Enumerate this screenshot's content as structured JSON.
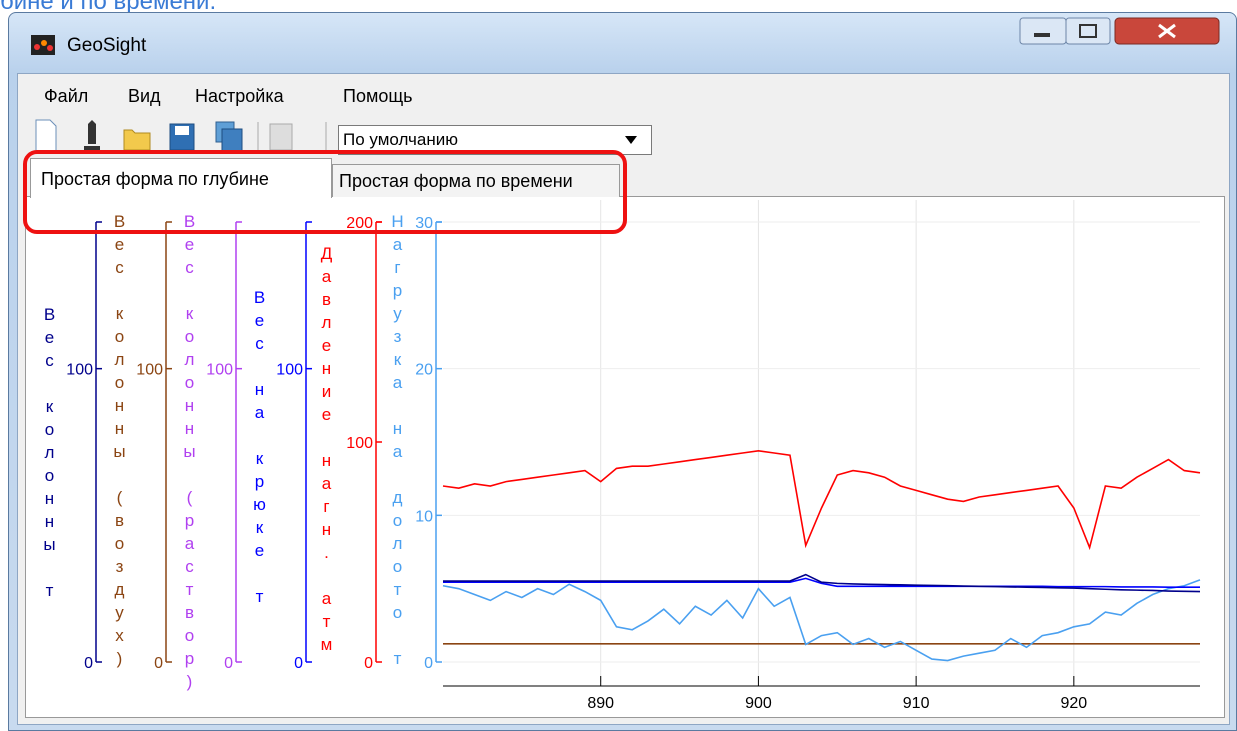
{
  "caption": "бине и по времени.",
  "window": {
    "title": "GeoSight"
  },
  "menu": [
    "Файл",
    "Вид",
    "Настройка",
    "Помощь"
  ],
  "toolbar": {
    "dropdown": "По умолчанию"
  },
  "tabs": [
    "Простая форма по глубине",
    "Простая форма по времени"
  ],
  "chart_data": {
    "type": "line",
    "x": [
      880,
      881,
      882,
      883,
      884,
      885,
      886,
      887,
      888,
      889,
      890,
      891,
      892,
      893,
      894,
      895,
      896,
      897,
      898,
      899,
      900,
      901,
      902,
      903,
      904,
      905,
      906,
      907,
      908,
      909,
      910,
      911,
      912,
      913,
      914,
      915,
      916,
      917,
      918,
      919,
      920,
      921,
      922,
      923,
      924,
      925,
      926,
      927,
      928
    ],
    "xlim": [
      880,
      928
    ],
    "xticks": [
      890,
      900,
      910,
      920
    ],
    "grid": true,
    "axes": [
      {
        "title": "Вес колонны т",
        "color": "#00008b",
        "ylim": [
          0,
          150
        ],
        "yticks": [
          0,
          100
        ]
      },
      {
        "title": "Вес колонны (воздух)",
        "color": "#8b4513",
        "ylim": [
          0,
          150
        ],
        "yticks": [
          0,
          100
        ]
      },
      {
        "title": "Вес колонны (раствор)",
        "color": "#b040f0",
        "ylim": [
          0,
          150
        ],
        "yticks": [
          0,
          100
        ]
      },
      {
        "title": "Вес на крюке т",
        "color": "#0000ff",
        "ylim": [
          0,
          150
        ],
        "yticks": [
          0,
          100
        ]
      },
      {
        "title": "Давление нагн. атм",
        "color": "#ff0000",
        "ylim": [
          0,
          200
        ],
        "yticks": [
          0,
          100,
          200
        ]
      },
      {
        "title": "Нагрузка на долото т",
        "color": "#4aa0f0",
        "ylim": [
          0,
          30
        ],
        "yticks": [
          0,
          10,
          20,
          30
        ]
      }
    ],
    "series": [
      {
        "axis": 1,
        "color": "#8b4513",
        "values": [
          6.2,
          6.2,
          6.2,
          6.2,
          6.2,
          6.2,
          6.2,
          6.2,
          6.2,
          6.2,
          6.2,
          6.2,
          6.2,
          6.2,
          6.2,
          6.2,
          6.2,
          6.2,
          6.2,
          6.2,
          6.2,
          6.2,
          6.2,
          6.2,
          6.2,
          6.2,
          6.2,
          6.2,
          6.2,
          6.2,
          6.2,
          6.2,
          6.2,
          6.2,
          6.2,
          6.2,
          6.2,
          6.2,
          6.2,
          6.2,
          6.2,
          6.2,
          6.2,
          6.2,
          6.2,
          6.2,
          6.2,
          6.2,
          6.2
        ]
      },
      {
        "axis": 5,
        "color": "#4aa0f0",
        "values": [
          5.2,
          5.0,
          4.6,
          4.2,
          4.8,
          4.4,
          5.0,
          4.6,
          5.3,
          4.8,
          4.2,
          2.4,
          2.2,
          2.8,
          3.6,
          2.6,
          3.8,
          3.2,
          4.2,
          3.0,
          5.0,
          3.8,
          4.4,
          1.2,
          1.8,
          2.0,
          1.2,
          1.6,
          1.0,
          1.4,
          0.8,
          0.2,
          0.1,
          0.4,
          0.6,
          0.8,
          1.6,
          1.0,
          1.8,
          2.0,
          2.4,
          2.6,
          3.4,
          3.2,
          4.0,
          4.6,
          5.0,
          5.2,
          5.6
        ]
      },
      {
        "axis": 3,
        "color": "#0000ff",
        "values": [
          27.2,
          27.2,
          27.2,
          27.2,
          27.2,
          27.2,
          27.2,
          27.2,
          27.2,
          27.2,
          27.2,
          27.2,
          27.2,
          27.2,
          27.2,
          27.2,
          27.2,
          27.2,
          27.2,
          27.2,
          27.2,
          27.2,
          27.2,
          28.5,
          26.8,
          25.8,
          25.8,
          25.8,
          25.8,
          25.8,
          25.8,
          25.8,
          25.8,
          25.8,
          25.8,
          25.8,
          25.8,
          25.8,
          25.8,
          25.7,
          25.7,
          25.7,
          25.7,
          25.6,
          25.6,
          25.6,
          25.5,
          25.5,
          25.5
        ]
      },
      {
        "axis": 0,
        "color": "#00008b",
        "values": [
          27.6,
          27.6,
          27.6,
          27.6,
          27.6,
          27.6,
          27.6,
          27.6,
          27.6,
          27.6,
          27.6,
          27.6,
          27.6,
          27.6,
          27.6,
          27.6,
          27.6,
          27.6,
          27.6,
          27.6,
          27.6,
          27.6,
          27.6,
          29.8,
          27.2,
          26.8,
          26.6,
          26.5,
          26.4,
          26.3,
          26.2,
          26.1,
          26.0,
          25.9,
          25.8,
          25.7,
          25.6,
          25.5,
          25.4,
          25.3,
          25.2,
          25.0,
          24.8,
          24.6,
          24.5,
          24.4,
          24.2,
          24.1,
          24.0
        ]
      },
      {
        "axis": 4,
        "color": "#ff0000",
        "values": [
          80,
          79,
          81,
          80,
          82,
          83,
          84,
          85,
          86,
          87,
          82,
          88,
          89,
          89,
          90,
          91,
          92,
          93,
          94,
          95,
          96,
          95,
          94,
          53,
          70,
          85,
          87,
          86,
          84,
          80,
          78,
          76,
          74,
          73,
          75,
          76,
          77,
          78,
          79,
          80,
          70,
          52,
          80,
          79,
          84,
          88,
          92,
          87,
          86
        ]
      }
    ]
  }
}
